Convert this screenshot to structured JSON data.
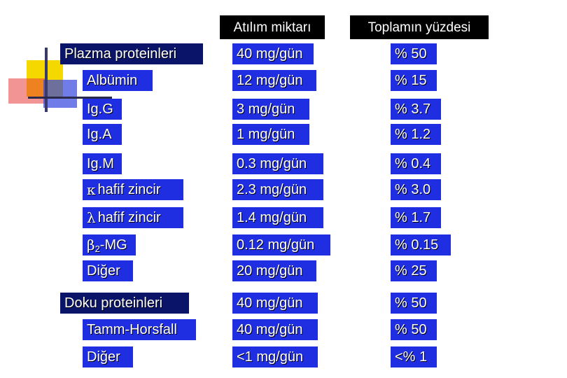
{
  "headers": {
    "col2": "Atılım miktarı",
    "col3": "Toplamın yüzdesi"
  },
  "rows": [
    {
      "label": "Plazma proteinleri",
      "amount": "40 mg/gün",
      "percent": "% 50",
      "type": "section"
    },
    {
      "label": "Albümin",
      "amount": "12 mg/gün",
      "percent": "% 15",
      "type": "item"
    },
    {
      "label": "Ig.G",
      "amount": "3 mg/gün",
      "percent": "% 3.7",
      "type": "item"
    },
    {
      "label": "Ig.A",
      "amount": "1 mg/gün",
      "percent": "% 1.2",
      "type": "item"
    },
    {
      "label": "Ig.M",
      "amount": "0.3 mg/gün",
      "percent": "% 0.4",
      "type": "item"
    },
    {
      "label_symbol": "κ",
      "label": "hafif zincir",
      "amount": "2.3 mg/gün",
      "percent": "% 3.0",
      "type": "item"
    },
    {
      "label_symbol": "λ",
      "label": "hafif zincir",
      "amount": "1.4 mg/gün",
      "percent": "% 1.7",
      "type": "item"
    },
    {
      "label_symbol": "β",
      "label_subscript": "2",
      "label": "-MG",
      "amount": "0.12 mg/gün",
      "percent": "% 0.15",
      "type": "item"
    },
    {
      "label": "Diğer",
      "amount": "20 mg/gün",
      "percent": "% 25",
      "type": "item"
    },
    {
      "label": "Doku proteinleri",
      "amount": "40 mg/gün",
      "percent": "% 50",
      "type": "section"
    },
    {
      "label": "Tamm-Horsfall",
      "amount": "40 mg/gün",
      "percent": "% 50",
      "type": "item"
    },
    {
      "label": "Diğer",
      "amount": "<1 mg/gün",
      "percent": "<% 1",
      "type": "item"
    }
  ],
  "colors": {
    "section_bg": "#0a1468",
    "item_bg": "#1e2ee0",
    "header_bg": "#000000",
    "text": "#ffffff",
    "accent_yellow": "#f5d800",
    "accent_red": "#e83c3c"
  }
}
